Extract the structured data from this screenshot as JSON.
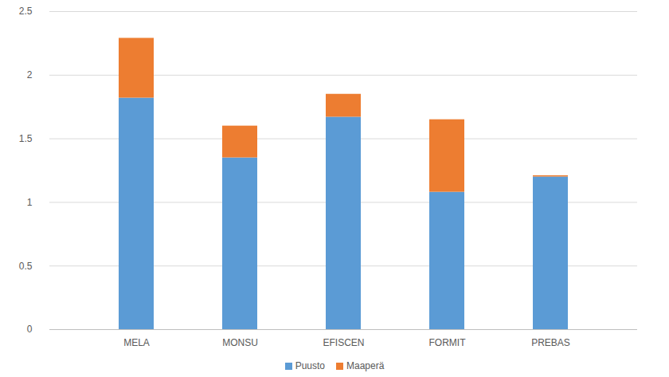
{
  "chart_data": {
    "type": "bar",
    "stacked": true,
    "categories": [
      "MELA",
      "MONSU",
      "EFISCEN",
      "FORMIT",
      "PREBAS"
    ],
    "series": [
      {
        "name": "Puusto",
        "color": "#5b9bd5",
        "values": [
          1.82,
          1.35,
          1.67,
          1.08,
          1.2
        ]
      },
      {
        "name": "Maaperä",
        "color": "#ed7d31",
        "values": [
          0.47,
          0.25,
          0.18,
          0.57,
          0.01
        ]
      }
    ],
    "ylim": [
      0,
      2.5
    ],
    "yticks": [
      0,
      0.5,
      1,
      1.5,
      2,
      2.5
    ],
    "grid": true,
    "legend": "bottom"
  }
}
